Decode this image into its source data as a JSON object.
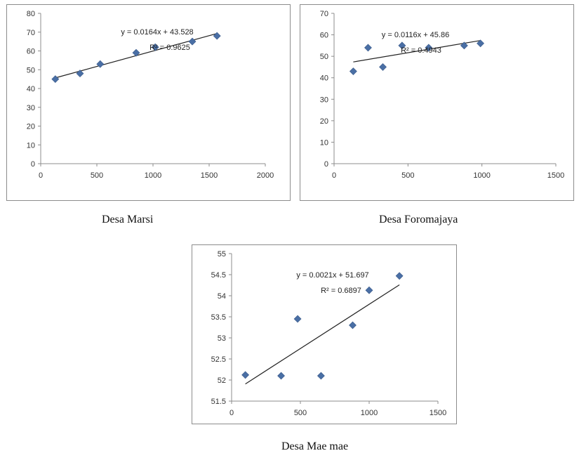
{
  "chart_data": [
    {
      "type": "scatter",
      "caption": "Desa Marsi",
      "x": [
        130,
        350,
        530,
        850,
        1020,
        1350,
        1570
      ],
      "y": [
        45,
        48,
        53,
        59,
        62,
        65,
        68
      ],
      "xlim": [
        0,
        2000
      ],
      "ylim": [
        0,
        80
      ],
      "xticks": [
        0,
        500,
        1000,
        1500,
        2000
      ],
      "yticks": [
        0,
        10,
        20,
        30,
        40,
        50,
        60,
        70,
        80
      ],
      "trendline": {
        "slope": 0.0164,
        "intercept": 43.528,
        "equation": "y = 0.0164x + 43.528",
        "r2": "R² = 0.9625"
      },
      "grid": false,
      "marker_color": "#4a6fa5"
    },
    {
      "type": "scatter",
      "caption": "Desa Foromajaya",
      "x": [
        130,
        230,
        330,
        460,
        640,
        880,
        990
      ],
      "y": [
        43,
        54,
        45,
        55,
        54,
        55,
        56
      ],
      "xlim": [
        0,
        1500
      ],
      "ylim": [
        0,
        70
      ],
      "xticks": [
        0,
        500,
        1000,
        1500
      ],
      "yticks": [
        0,
        10,
        20,
        30,
        40,
        50,
        60,
        70
      ],
      "trendline": {
        "slope": 0.0116,
        "intercept": 45.86,
        "equation": "y = 0.0116x + 45.86",
        "r2": "R² = 0.4943"
      },
      "grid": false,
      "marker_color": "#4a6fa5"
    },
    {
      "type": "scatter",
      "caption": "Desa Mae mae",
      "x": [
        100,
        360,
        480,
        650,
        880,
        1000,
        1220
      ],
      "y": [
        52.12,
        52.1,
        53.45,
        52.1,
        53.3,
        54.13,
        54.47
      ],
      "xlim": [
        0,
        1500
      ],
      "ylim": [
        51.5,
        55
      ],
      "xticks": [
        0,
        500,
        1000,
        1500
      ],
      "yticks": [
        51.5,
        52,
        52.5,
        53,
        53.5,
        54,
        54.5,
        55
      ],
      "trendline": {
        "slope": 0.0021,
        "intercept": 51.697,
        "equation": "y = 0.0021x + 51.697",
        "r2": "R² = 0.6897"
      },
      "grid": false,
      "marker_color": "#4a6fa5"
    }
  ]
}
